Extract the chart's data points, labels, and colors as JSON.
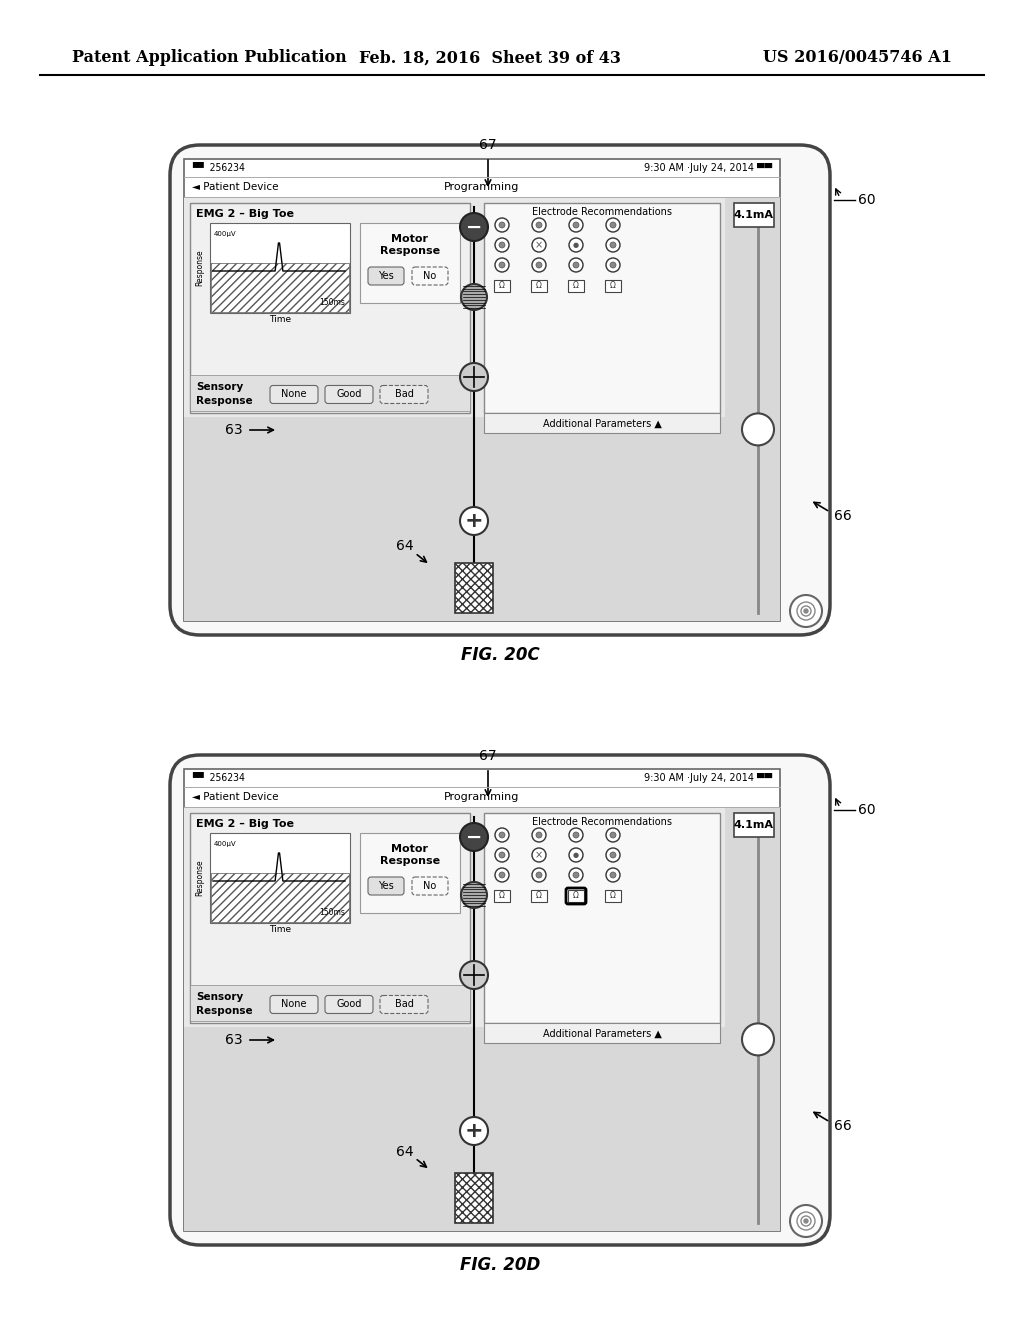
{
  "header_left": "Patent Application Publication",
  "header_mid": "Feb. 18, 2016  Sheet 39 of 43",
  "header_right": "US 2016/0045746 A1",
  "fig_c_label": "FIG. 20C",
  "fig_d_label": "FIG. 20D",
  "status_text": "256234",
  "time_text": "9:30 AM ·July 24, 2014",
  "nav_text": "Patient Device",
  "nav_center": "Programming",
  "emg_label": "EMG 2 – Big Toe",
  "motor_title1": "Motor",
  "motor_title2": "Response",
  "yes_label": "Yes",
  "no_label": "No",
  "sensory_label1": "Sensory",
  "sensory_label2": "Response",
  "sensory_buttons": [
    "None",
    "Good",
    "Bad"
  ],
  "electrode_title": "Electrode Recommendations",
  "additional_params": "Additional Parameters ▲",
  "current_label": "4.1mA",
  "label_60": "60",
  "label_63": "63",
  "label_64": "64",
  "label_66": "66",
  "label_67": "67",
  "bg_color": "#ffffff"
}
